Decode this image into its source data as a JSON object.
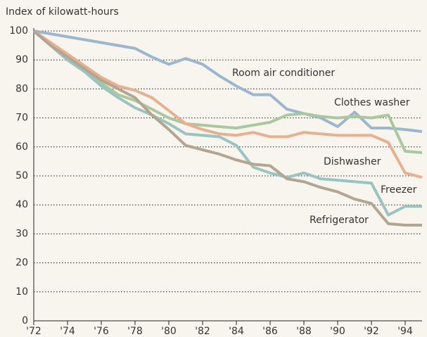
{
  "chart_data": {
    "type": "line",
    "y_label": "Index of kilowatt-hours",
    "x": [
      1972,
      1973,
      1974,
      1975,
      1976,
      1977,
      1978,
      1979,
      1980,
      1981,
      1982,
      1983,
      1984,
      1985,
      1986,
      1987,
      1988,
      1989,
      1990,
      1991,
      1992,
      1993,
      1994,
      1995
    ],
    "series": [
      {
        "name": "Room air conditioner",
        "color": "#9db6d0",
        "values": [
          100,
          99,
          98,
          97,
          96,
          95,
          94,
          91,
          88.5,
          90.5,
          88.5,
          84.5,
          81,
          78,
          78,
          73,
          71.5,
          70,
          67,
          72,
          66.5,
          66.5,
          66,
          65.3
        ]
      },
      {
        "name": "Clothes washer",
        "color": "#a9c89d",
        "values": [
          100,
          95,
          90,
          86,
          82,
          78,
          76,
          73,
          70,
          68,
          67.5,
          67,
          66.5,
          67.5,
          68.5,
          71,
          71.5,
          70.5,
          70,
          70.5,
          70,
          71,
          58.5,
          58
        ]
      },
      {
        "name": "Dishwasher",
        "color": "#e7b18f",
        "values": [
          100,
          96,
          92,
          88,
          84,
          81,
          79.5,
          77,
          72.5,
          68,
          66,
          64.5,
          64,
          65,
          63.5,
          63.5,
          65,
          64.5,
          64,
          64,
          64,
          61.5,
          51,
          49.5
        ]
      },
      {
        "name": "Freezer",
        "color": "#98c4c1",
        "values": [
          100,
          95,
          90,
          86,
          81,
          77,
          73.5,
          71,
          68,
          64.5,
          64,
          63.5,
          60.5,
          53,
          51,
          49.5,
          51,
          49,
          48.5,
          48,
          47.5,
          36.5,
          39.5,
          39.5
        ]
      },
      {
        "name": "Refrigerator",
        "color": "#b4a593",
        "values": [
          100,
          95,
          91,
          87,
          83,
          80,
          77,
          71,
          66,
          60.5,
          59,
          57.5,
          55.5,
          54,
          53.5,
          49,
          48,
          46,
          44.5,
          42,
          40.5,
          33.5,
          33,
          33
        ]
      }
    ],
    "xlim": [
      1972,
      1995
    ],
    "ylim": [
      0,
      100
    ],
    "xticks": [
      {
        "value": 1972,
        "label": "'72"
      },
      {
        "value": 1974,
        "label": "'74"
      },
      {
        "value": 1976,
        "label": "'76"
      },
      {
        "value": 1978,
        "label": "'78"
      },
      {
        "value": 1980,
        "label": "'80"
      },
      {
        "value": 1982,
        "label": "'82"
      },
      {
        "value": 1984,
        "label": "'84"
      },
      {
        "value": 1986,
        "label": "'86"
      },
      {
        "value": 1988,
        "label": "'88"
      },
      {
        "value": 1990,
        "label": "'90"
      },
      {
        "value": 1992,
        "label": "'92"
      },
      {
        "value": 1994,
        "label": "'94"
      }
    ],
    "yticks": [
      0,
      10,
      20,
      30,
      40,
      50,
      60,
      70,
      80,
      90,
      100
    ],
    "grid": true
  }
}
